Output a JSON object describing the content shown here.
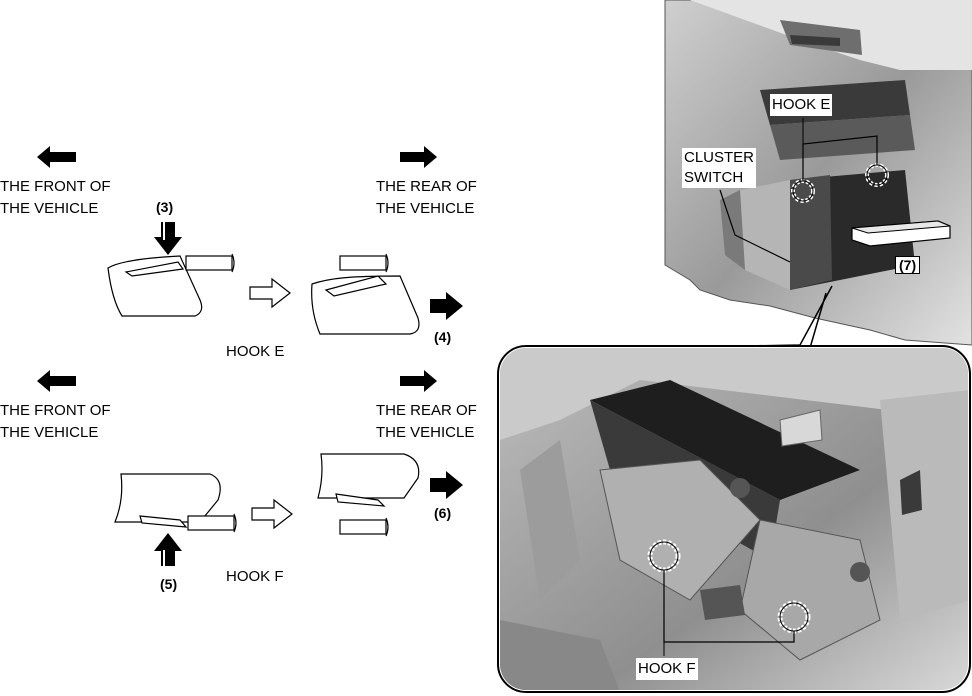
{
  "labels": {
    "front_top": "THE FRONT OF\nTHE VEHICLE",
    "rear_top": "THE REAR OF\nTHE VEHICLE",
    "front_bottom": "THE FRONT OF\nTHE VEHICLE",
    "rear_bottom": "THE REAR OF\nTHE VEHICLE",
    "hook_e_step": "HOOK E",
    "hook_f_step": "HOOK F",
    "hook_e_photo": "HOOK E",
    "cluster_switch": "CLUSTER\nSWITCH",
    "hook_f_photo": "HOOK F"
  },
  "steps": {
    "s3": "(3)",
    "s4": "(4)",
    "s5": "(5)",
    "s6": "(6)",
    "s7": "(7)"
  },
  "colors": {
    "ink": "#000000",
    "photo_dark": "#2a2a2a",
    "photo_mid": "#8a8a8a",
    "photo_light": "#d2d2d2"
  }
}
